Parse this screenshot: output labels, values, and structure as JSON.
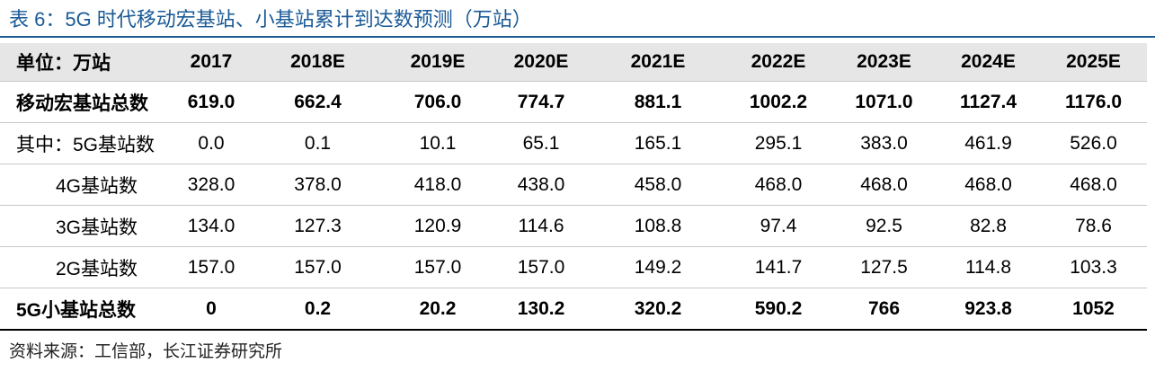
{
  "title": "表 6：5G 时代移动宏基站、小基站累计到达数预测（万站）",
  "table": {
    "header": [
      "单位：万站",
      "2017",
      "2018E",
      "2019E",
      "2020E",
      "2021E",
      "2022E",
      "2023E",
      "2024E",
      "2025E"
    ],
    "rows": [
      {
        "label": "移动宏基站总数",
        "values": [
          "619.0",
          "662.4",
          "706.0",
          "774.7",
          "881.1",
          "1002.2",
          "1071.0",
          "1127.4",
          "1176.0"
        ]
      },
      {
        "label": "其中：5G基站数",
        "values": [
          "0.0",
          "0.1",
          "10.1",
          "65.1",
          "165.1",
          "295.1",
          "383.0",
          "461.9",
          "526.0"
        ]
      },
      {
        "label": "4G基站数",
        "values": [
          "328.0",
          "378.0",
          "418.0",
          "438.0",
          "458.0",
          "468.0",
          "468.0",
          "468.0",
          "468.0"
        ]
      },
      {
        "label": "3G基站数",
        "values": [
          "134.0",
          "127.3",
          "120.9",
          "114.6",
          "108.8",
          "97.4",
          "92.5",
          "82.8",
          "78.6"
        ]
      },
      {
        "label": "2G基站数",
        "values": [
          "157.0",
          "157.0",
          "157.0",
          "157.0",
          "149.2",
          "141.7",
          "127.5",
          "114.8",
          "103.3"
        ]
      },
      {
        "label": "5G小基站总数",
        "values": [
          "0",
          "0.2",
          "20.2",
          "130.2",
          "320.2",
          "590.2",
          "766",
          "923.8",
          "1052"
        ]
      }
    ]
  },
  "source": "资料来源：工信部，长江证券研究所"
}
